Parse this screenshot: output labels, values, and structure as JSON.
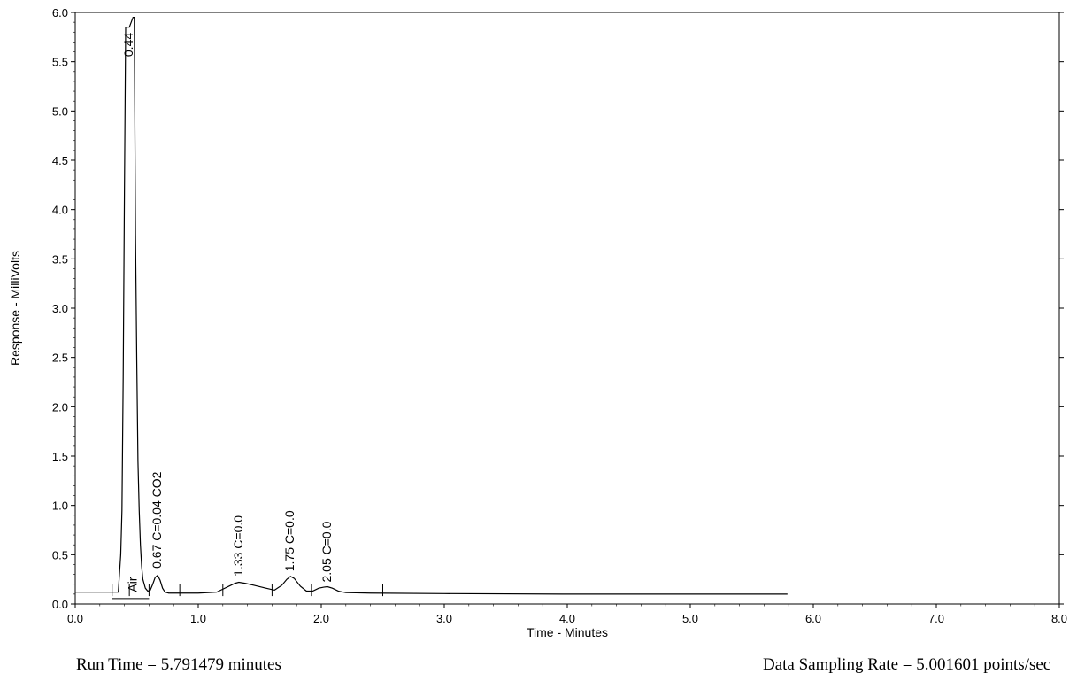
{
  "chart_data": {
    "type": "line",
    "title": "",
    "xlabel": "Time - Minutes",
    "ylabel": "Response - MilliVolts",
    "xlim": [
      0,
      8
    ],
    "ylim": [
      0,
      6
    ],
    "x_ticks": [
      0,
      1,
      2,
      3,
      4,
      5,
      6,
      7,
      8
    ],
    "x_tick_labels": [
      "0.0",
      "1.0",
      "2.0",
      "3.0",
      "4.0",
      "5.0",
      "6.0",
      "7.0",
      "8.0"
    ],
    "y_ticks": [
      0,
      0.5,
      1,
      1.5,
      2,
      2.5,
      3,
      3.5,
      4,
      4.5,
      5,
      5.5,
      6
    ],
    "y_tick_labels": [
      "0.0",
      "0.5",
      "1.0",
      "1.5",
      "2.0",
      "2.5",
      "3.0",
      "3.5",
      "4.0",
      "4.5",
      "5.0",
      "5.5",
      "6.0"
    ],
    "series": [
      {
        "x": [
          0.0,
          0.2,
          0.35,
          0.37,
          0.38,
          0.39,
          0.4,
          0.41,
          0.44,
          0.47,
          0.48,
          0.49,
          0.5,
          0.51,
          0.52,
          0.53,
          0.54,
          0.55,
          0.57,
          0.59,
          0.61,
          0.63,
          0.65,
          0.67,
          0.69,
          0.71,
          0.73,
          0.76,
          0.8,
          1.0,
          1.15,
          1.25,
          1.3,
          1.33,
          1.38,
          1.45,
          1.55,
          1.62,
          1.68,
          1.72,
          1.75,
          1.78,
          1.83,
          1.88,
          1.93,
          1.98,
          2.02,
          2.05,
          2.09,
          2.14,
          2.2,
          2.4,
          3.0,
          4.0,
          5.0,
          5.79
        ],
        "y": [
          0.12,
          0.12,
          0.12,
          0.5,
          0.95,
          2.3,
          4.15,
          5.85,
          5.85,
          5.95,
          5.95,
          3.75,
          2.5,
          1.45,
          0.95,
          0.6,
          0.38,
          0.25,
          0.16,
          0.13,
          0.14,
          0.2,
          0.27,
          0.29,
          0.24,
          0.16,
          0.12,
          0.11,
          0.11,
          0.11,
          0.12,
          0.18,
          0.21,
          0.22,
          0.21,
          0.19,
          0.16,
          0.14,
          0.19,
          0.25,
          0.28,
          0.26,
          0.18,
          0.13,
          0.13,
          0.16,
          0.17,
          0.175,
          0.16,
          0.13,
          0.115,
          0.11,
          0.105,
          0.1,
          0.1,
          0.1
        ]
      }
    ],
    "peak_labels": [
      {
        "x": 0.44,
        "y": 5.55,
        "label": "0.44"
      },
      {
        "x": 0.67,
        "y": 0.36,
        "label": "0.67  C=0.04  CO2"
      },
      {
        "x": 1.33,
        "y": 0.28,
        "label": "1.33  C=0.0"
      },
      {
        "x": 1.75,
        "y": 0.33,
        "label": "1.75  C=0.0"
      },
      {
        "x": 2.05,
        "y": 0.22,
        "label": "2.05  C=0.0"
      },
      {
        "x": 0.47,
        "y": 0.12,
        "label": "Air"
      }
    ],
    "baseline_markers": [
      0.3,
      0.44,
      0.6,
      0.85,
      1.2,
      1.6,
      1.92,
      2.5
    ]
  },
  "footer": {
    "run_time": "Run Time = 5.791479 minutes",
    "sampling_rate": "Data Sampling Rate = 5.001601 points/sec"
  }
}
